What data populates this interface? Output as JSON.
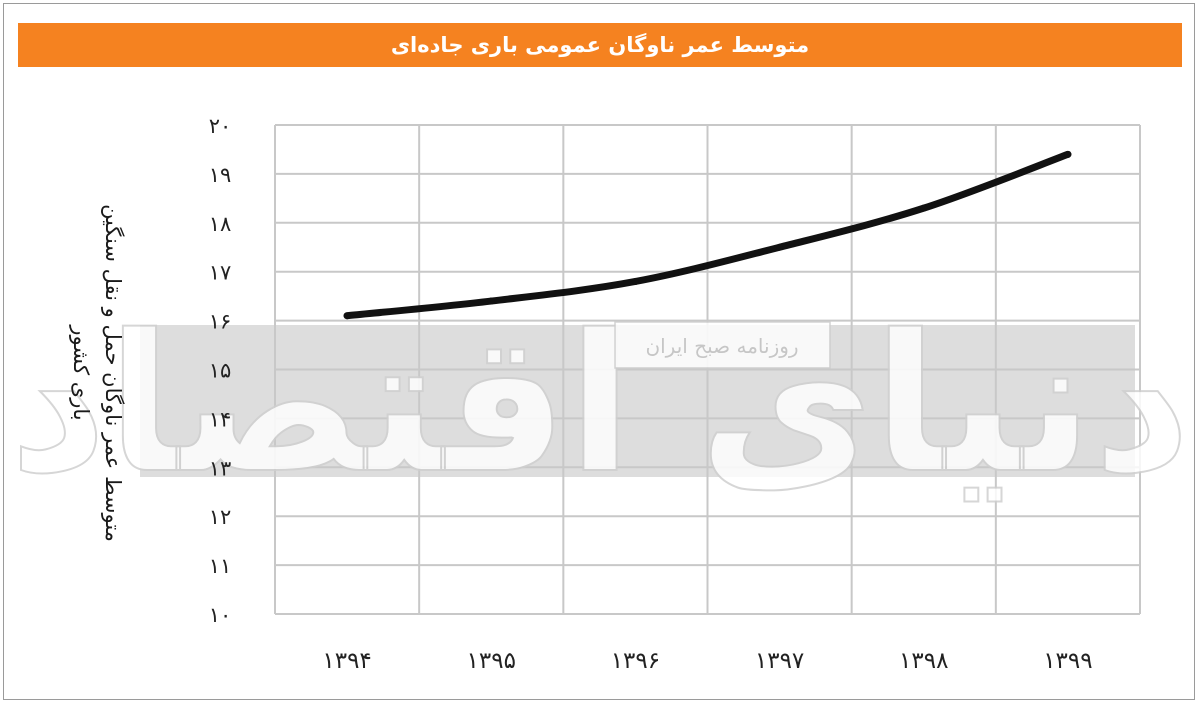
{
  "header": {
    "title": "متوسط عمر ناوگان عمومی باری جاده‌ای"
  },
  "colors": {
    "banner": "#f58220",
    "line": "#111111",
    "grid": "#c8c8c8",
    "watermark_band": "#d9d9d9"
  },
  "watermark": {
    "brand": "دنیای اقتصاد",
    "tagline": "روزنامه صبح ایران"
  },
  "chart_data": {
    "type": "line",
    "title": "متوسط عمر ناوگان عمومی باری جاده‌ای",
    "ylabel_lines": [
      "متوسط عمر ناوگان حمل و نقل سنگین",
      "باری کشور"
    ],
    "xlabel": "",
    "categories": [
      "۱۳۹۴",
      "۱۳۹۵",
      "۱۳۹۶",
      "۱۳۹۷",
      "۱۳۹۸",
      "۱۳۹۹"
    ],
    "ytick_labels": [
      "۱۰",
      "۱۱",
      "۱۲",
      "۱۳",
      "۱۴",
      "۱۵",
      "۱۶",
      "۱۷",
      "۱۸",
      "۱۹",
      "۲۰"
    ],
    "ylim": [
      10,
      20
    ],
    "grid": true,
    "legend": "none",
    "series": [
      {
        "values": [
          16.1,
          16.4,
          16.8,
          17.5,
          18.3,
          19.4
        ]
      }
    ]
  }
}
